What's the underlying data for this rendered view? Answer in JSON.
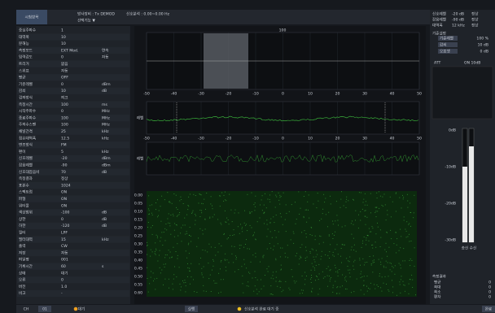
{
  "header": {
    "tab": "시험항목",
    "info": [
      "방사장비 : Tx DEMOD",
      "신호분석 : 0.00~0.00 Hz"
    ],
    "menu": "선택기능 ▼"
  },
  "left_panel": {
    "rows": [
      [
        "중심주파수",
        "1",
        ""
      ],
      [
        "대역폭",
        "10",
        ""
      ],
      [
        "분해능",
        "10",
        ""
      ],
      [
        "측정모드",
        "EXT Mod.",
        "연속"
      ],
      [
        "입력감도",
        "0",
        "자동"
      ],
      [
        "트리거",
        "없음",
        ""
      ],
      [
        "스위프",
        "자동",
        ""
      ],
      [
        "평균",
        "OFF",
        ""
      ],
      [
        "기준레벨",
        "0",
        "dBm"
      ],
      [
        "감쇠",
        "10",
        "dB"
      ],
      [
        "검파방식",
        "피크",
        ""
      ],
      [
        "측정시간",
        "100",
        "ms"
      ],
      [
        "시작주파수",
        "0",
        "MHz"
      ],
      [
        "종료주파수",
        "100",
        "MHz"
      ],
      [
        "주파수스팬",
        "100",
        "MHz"
      ],
      [
        "채널간격",
        "25",
        "kHz"
      ],
      [
        "점유대역폭",
        "12.5",
        "kHz"
      ],
      [
        "변조방식",
        "FM",
        ""
      ],
      [
        "편이",
        "5",
        "kHz"
      ],
      [
        "신호레벨",
        "-20",
        "dBm"
      ],
      [
        "잡음레벨",
        "-90",
        "dBm"
      ],
      [
        "신호대잡음비",
        "70",
        "dB"
      ],
      [
        "측정결과",
        "정상",
        ""
      ],
      [
        "표본수",
        "1024",
        ""
      ],
      [
        "스펙트럼",
        "ON",
        ""
      ],
      [
        "파형",
        "ON",
        ""
      ],
      [
        "워터폴",
        "ON",
        ""
      ],
      [
        "색상범위",
        "-100",
        "dB"
      ],
      [
        "상한",
        "0",
        "dB"
      ],
      [
        "하한",
        "-120",
        "dB"
      ],
      [
        "필터",
        "LPF",
        ""
      ],
      [
        "필터대역",
        "15",
        "kHz"
      ],
      [
        "출력",
        "CW",
        ""
      ],
      [
        "저장",
        "자동",
        ""
      ],
      [
        "파일명",
        "001",
        ""
      ],
      [
        "기록시간",
        "60",
        "s"
      ],
      [
        "상태",
        "대기",
        ""
      ],
      [
        "오류",
        "0",
        ""
      ],
      [
        "버전",
        "1.0",
        ""
      ],
      [
        "비고",
        "-",
        ""
      ]
    ]
  },
  "plots": {
    "spectrum_title": "100",
    "level_label": "레벨",
    "noise_label": "레벨",
    "xticks": [
      "-50",
      "-40",
      "-30",
      "-20",
      "-10",
      "0",
      "10",
      "20",
      "30",
      "40",
      "50"
    ],
    "waterfall_ticks": [
      "0.00",
      "0.05",
      "0.10",
      "0.15",
      "0.20",
      "0.25",
      "0.30",
      "0.35",
      "0.40",
      "0.45",
      "0.50",
      "0.55",
      "0.60"
    ]
  },
  "right_panel": {
    "table": [
      [
        "신호레벨",
        "-20 dB",
        "정상"
      ],
      [
        "잡음레벨",
        "-90 dB",
        "정상"
      ],
      [
        "대역폭",
        "12 kHz",
        "정상"
      ]
    ],
    "section": "기준설정",
    "params": [
      [
        "기준레벨",
        "100 %"
      ],
      [
        "감쇠",
        "10 dB"
      ],
      [
        "오프셋",
        "0 dB"
      ]
    ],
    "att": "ATT",
    "att_value": "ON 10dB",
    "bar_labels": [
      "0dB",
      "-10dB",
      "-20dB",
      "-30dB"
    ],
    "bar_names": [
      "송신",
      "수신"
    ],
    "result_title": "측정결과",
    "results": [
      [
        "평균",
        "0"
      ],
      [
        "최대",
        "0"
      ],
      [
        "최소",
        "0"
      ],
      [
        "편차",
        "0"
      ]
    ]
  },
  "footer": {
    "items": [
      "CH",
      "01",
      "대기",
      "실행",
      "신호분석 완료 대기 중",
      "완료"
    ]
  }
}
